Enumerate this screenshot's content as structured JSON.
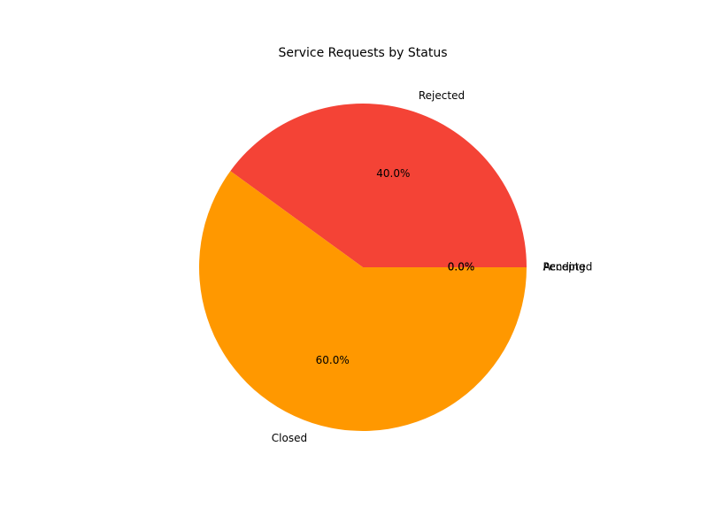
{
  "chart_data": {
    "type": "pie",
    "title": "Service Requests by Status",
    "categories": [
      "Pending",
      "Accepted",
      "Rejected",
      "Closed"
    ],
    "values": [
      0,
      0,
      40,
      60
    ],
    "percent_labels": [
      "0.0%",
      "0.0%",
      "40.0%",
      "60.0%"
    ],
    "colors": [
      "#4caf50",
      "#2196f3",
      "#f44336",
      "#ff9800"
    ],
    "start_angle_degrees": 0,
    "direction": "counterclockwise",
    "legend": "none"
  }
}
